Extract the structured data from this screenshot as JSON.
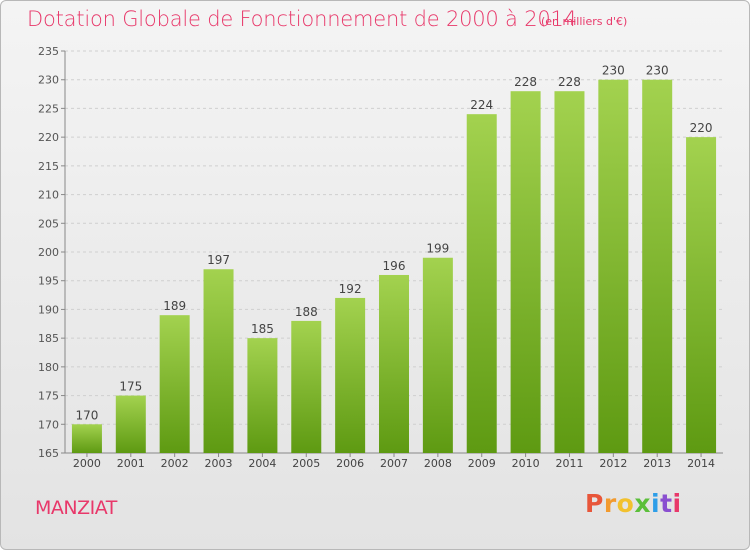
{
  "header": {
    "title": "Dotation Globale de Fonctionnement de 2000 à 2014",
    "subtitle": "(en milliers d'€)"
  },
  "footer": {
    "commune": "MANZIAT",
    "logo_letters": [
      "P",
      "r",
      "o",
      "x",
      "i",
      "t",
      "i"
    ],
    "logo_colors": [
      "#e8563a",
      "#f29a2e",
      "#f2c12e",
      "#5bbf3a",
      "#2e9ee8",
      "#8a4fd0",
      "#e8386a"
    ]
  },
  "chart_data": {
    "type": "bar",
    "title": "Dotation Globale de Fonctionnement de 2000 à 2014",
    "subtitle": "(en milliers d'€)",
    "categories": [
      "2000",
      "2001",
      "2002",
      "2003",
      "2004",
      "2005",
      "2006",
      "2007",
      "2008",
      "2009",
      "2010",
      "2011",
      "2012",
      "2013",
      "2014"
    ],
    "values": [
      170,
      175,
      189,
      197,
      185,
      188,
      192,
      196,
      199,
      224,
      228,
      228,
      230,
      230,
      220
    ],
    "ylim": [
      165,
      235
    ],
    "yticks": [
      165,
      170,
      175,
      180,
      185,
      190,
      195,
      200,
      205,
      210,
      215,
      220,
      225,
      230,
      235
    ],
    "grid": true,
    "bar_color_top": "#a3d24f",
    "bar_color_bottom": "#5e9a12"
  }
}
